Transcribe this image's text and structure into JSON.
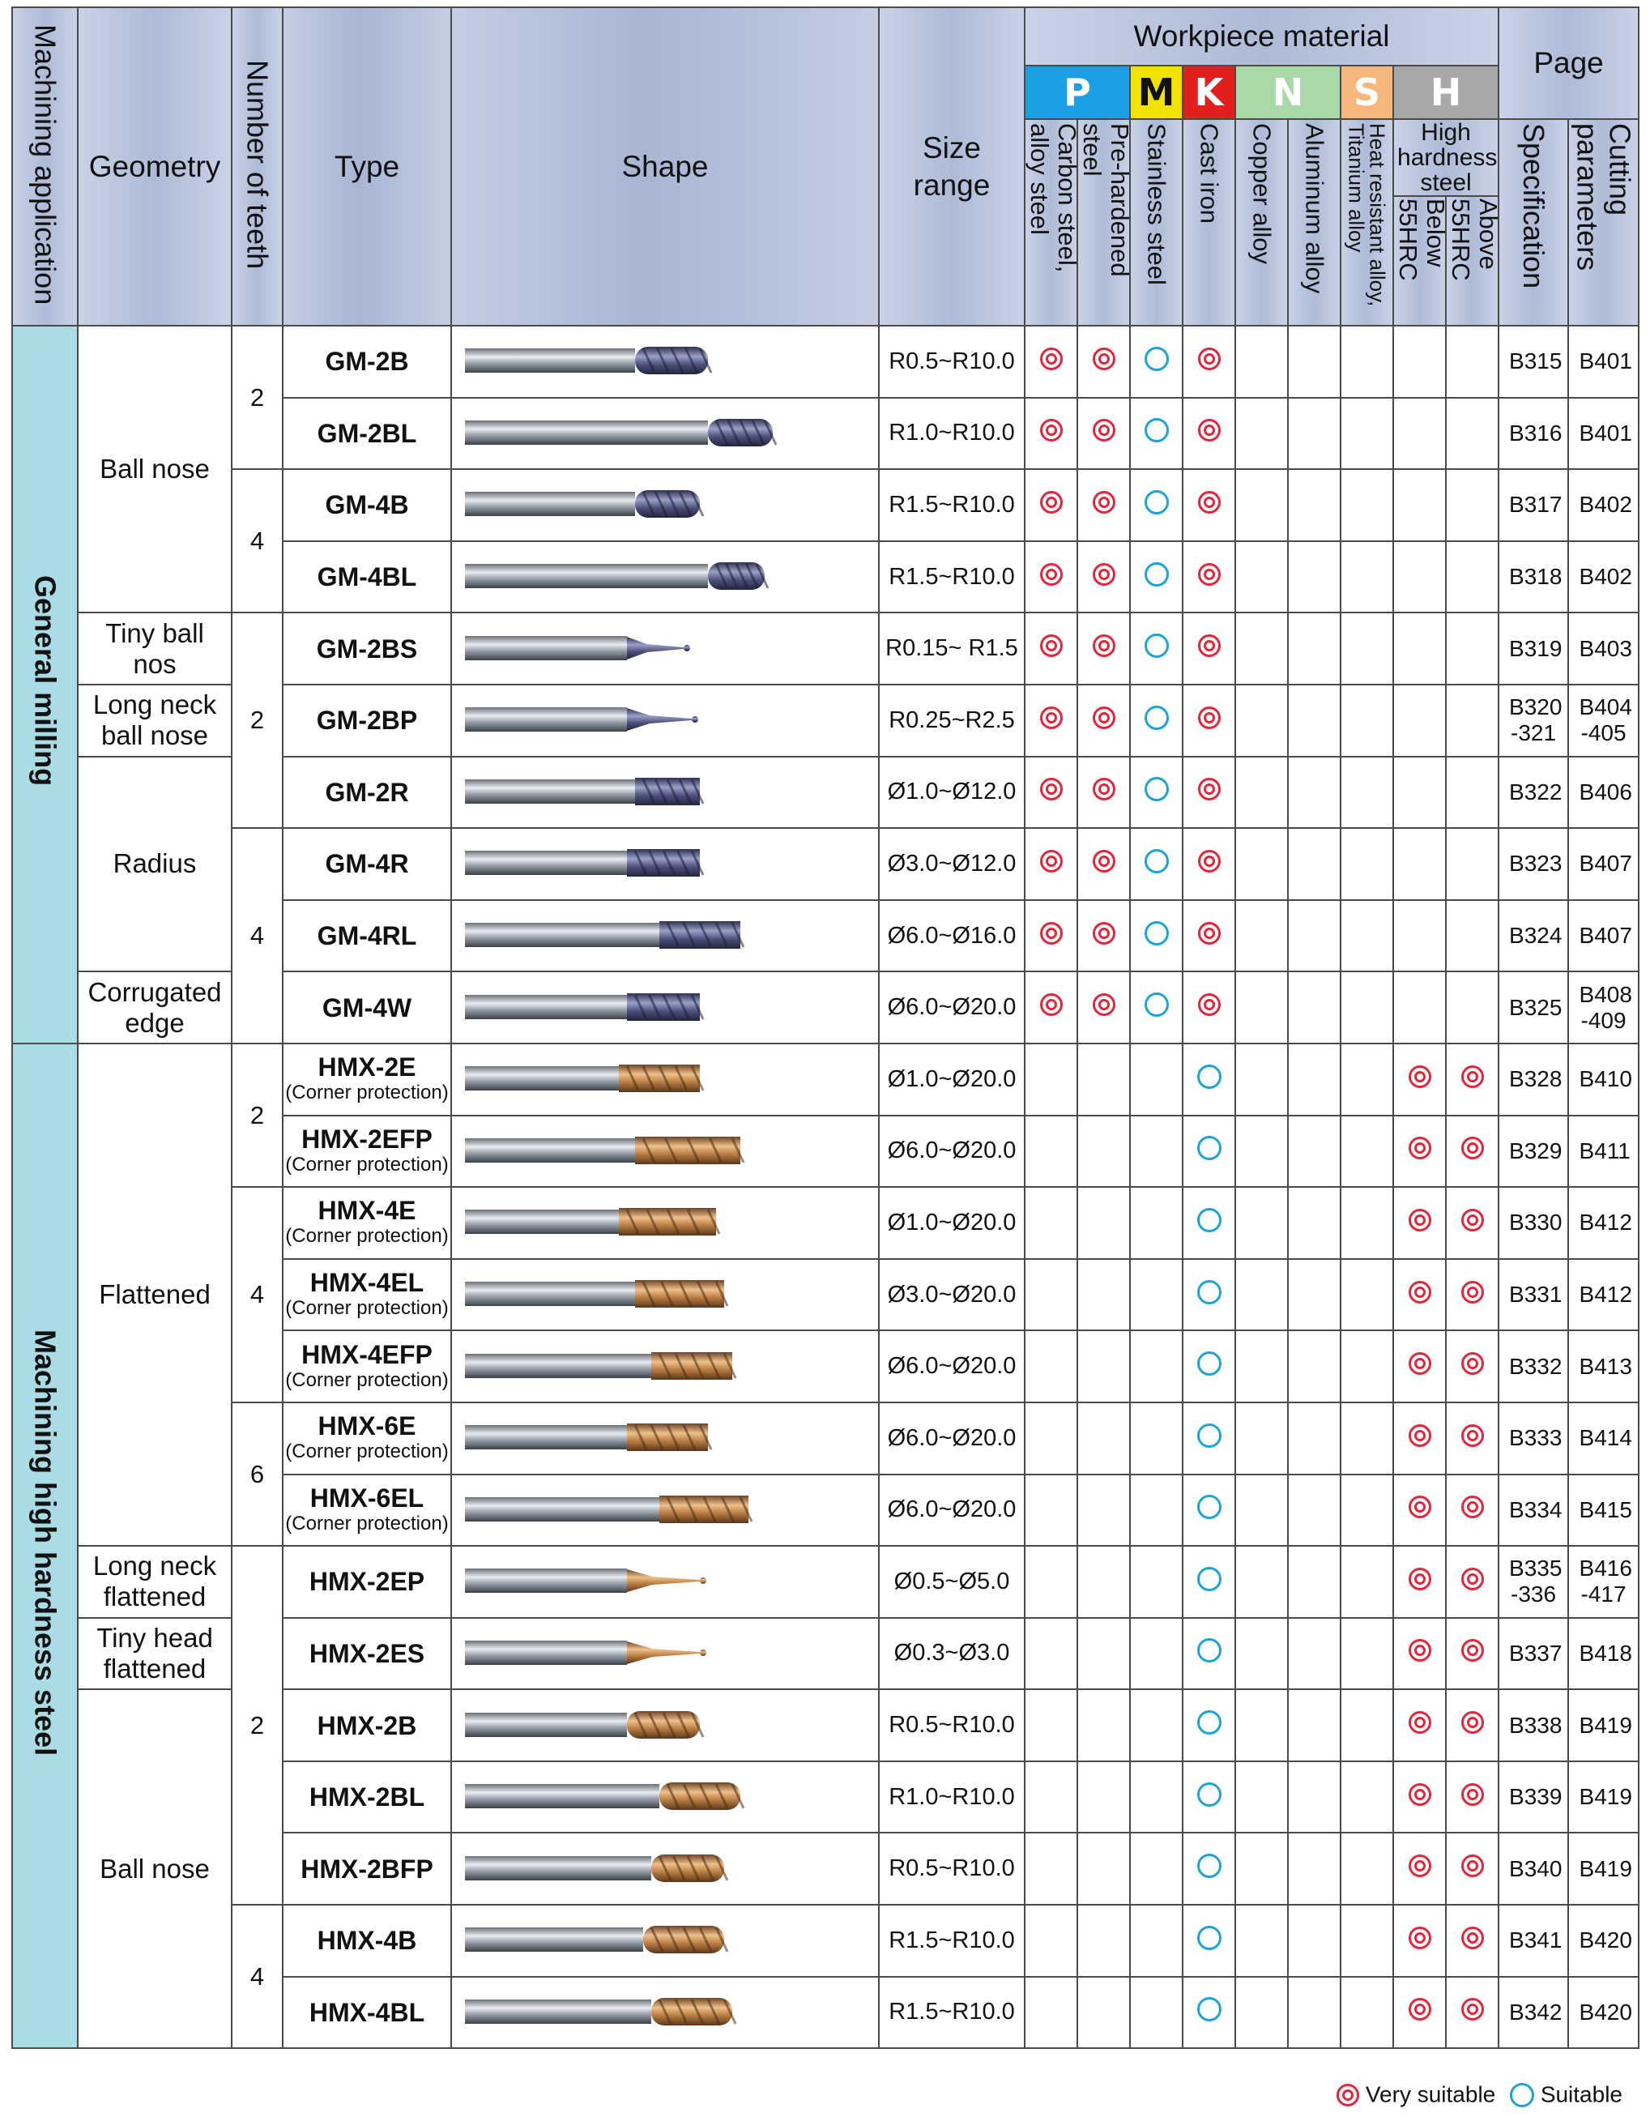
{
  "header": {
    "machining_application": "Machining application",
    "geometry": "Geometry",
    "number_of_teeth": "Number of teeth",
    "type": "Type",
    "shape": "Shape",
    "size_range": "Size range",
    "workpiece_material": "Workpiece material",
    "page": "Page",
    "material_codes": [
      {
        "code": "P",
        "color": "#1aa0e4"
      },
      {
        "code": "M",
        "color": "#f2e200"
      },
      {
        "code": "K",
        "color": "#e1201e"
      },
      {
        "code": "N",
        "color": "#a9d9a9"
      },
      {
        "code": "S",
        "color": "#f6b77a"
      },
      {
        "code": "H",
        "color": "#a8a8a8"
      }
    ],
    "materials": {
      "carbon": "Carbon steel, alloy steel",
      "prehardened": "Pre-hardened steel",
      "stainless": "Stainless steel",
      "cast_iron": "Cast iron",
      "copper": "Copper alloy",
      "aluminum": "Aluminum alloy",
      "heat_resistant": "Heat resistant alloy, Titanium alloy",
      "high_hardness": "High hardness steel",
      "below55": "Below 55HRC",
      "above55": "Above 55HRC"
    },
    "specification": "Specification",
    "cutting_parameters": "Cutting parameters"
  },
  "applications": {
    "general": "General milling",
    "high_hardness": "Machining high hardness steel"
  },
  "geometry_groups": {
    "ball_nose_1": "Ball nose",
    "tiny_ball": "Tiny ball nos",
    "long_neck_ball": "Long neck ball nose",
    "radius": "Radius",
    "corrugated": "Corrugated edge",
    "flattened": "Flattened",
    "long_neck_flat": "Long neck flattened",
    "tiny_head_flat": "Tiny head flattened",
    "ball_nose_2": "Ball nose"
  },
  "teeth_groups": [
    "2",
    "4",
    "2",
    "4",
    "2",
    "4",
    "6",
    "2",
    "4"
  ],
  "rows": [
    {
      "type": "GM-2B",
      "sub": "",
      "size": "R0.5~R10.0",
      "spec": "B315",
      "cut": "B401"
    },
    {
      "type": "GM-2BL",
      "sub": "",
      "size": "R1.0~R10.0",
      "spec": "B316",
      "cut": "B401"
    },
    {
      "type": "GM-4B",
      "sub": "",
      "size": "R1.5~R10.0",
      "spec": "B317",
      "cut": "B402"
    },
    {
      "type": "GM-4BL",
      "sub": "",
      "size": "R1.5~R10.0",
      "spec": "B318",
      "cut": "B402"
    },
    {
      "type": "GM-2BS",
      "sub": "",
      "size": "R0.15~ R1.5",
      "spec": "B319",
      "cut": "B403"
    },
    {
      "type": "GM-2BP",
      "sub": "",
      "size": "R0.25~R2.5",
      "spec": "B320 -321",
      "cut": "B404 -405"
    },
    {
      "type": "GM-2R",
      "sub": "",
      "size": "Ø1.0~Ø12.0",
      "spec": "B322",
      "cut": "B406"
    },
    {
      "type": "GM-4R",
      "sub": "",
      "size": "Ø3.0~Ø12.0",
      "spec": "B323",
      "cut": "B407"
    },
    {
      "type": "GM-4RL",
      "sub": "",
      "size": "Ø6.0~Ø16.0",
      "spec": "B324",
      "cut": "B407"
    },
    {
      "type": "GM-4W",
      "sub": "",
      "size": "Ø6.0~Ø20.0",
      "spec": "B325",
      "cut": "B408 -409"
    },
    {
      "type": "HMX-2E",
      "sub": "(Corner protection)",
      "size": "Ø1.0~Ø20.0",
      "spec": "B328",
      "cut": "B410"
    },
    {
      "type": "HMX-2EFP",
      "sub": "(Corner protection)",
      "size": "Ø6.0~Ø20.0",
      "spec": "B329",
      "cut": "B411"
    },
    {
      "type": "HMX-4E",
      "sub": "(Corner protection)",
      "size": "Ø1.0~Ø20.0",
      "spec": "B330",
      "cut": "B412"
    },
    {
      "type": "HMX-4EL",
      "sub": "(Corner protection)",
      "size": "Ø3.0~Ø20.0",
      "spec": "B331",
      "cut": "B412"
    },
    {
      "type": "HMX-4EFP",
      "sub": "(Corner protection)",
      "size": "Ø6.0~Ø20.0",
      "spec": "B332",
      "cut": "B413"
    },
    {
      "type": "HMX-6E",
      "sub": "(Corner protection)",
      "size": "Ø6.0~Ø20.0",
      "spec": "B333",
      "cut": "B414"
    },
    {
      "type": "HMX-6EL",
      "sub": "(Corner protection)",
      "size": "Ø6.0~Ø20.0",
      "spec": "B334",
      "cut": "B415"
    },
    {
      "type": "HMX-2EP",
      "sub": "",
      "size": "Ø0.5~Ø5.0",
      "spec": "B335 -336",
      "cut": "B416 -417"
    },
    {
      "type": "HMX-2ES",
      "sub": "",
      "size": "Ø0.3~Ø3.0",
      "spec": "B337",
      "cut": "B418"
    },
    {
      "type": "HMX-2B",
      "sub": "",
      "size": "R0.5~R10.0",
      "spec": "B338",
      "cut": "B419"
    },
    {
      "type": "HMX-2BL",
      "sub": "",
      "size": "R1.0~R10.0",
      "spec": "B339",
      "cut": "B419"
    },
    {
      "type": "HMX-2BFP",
      "sub": "",
      "size": "R0.5~R10.0",
      "spec": "B340",
      "cut": "B419"
    },
    {
      "type": "HMX-4B",
      "sub": "",
      "size": "R1.5~R10.0",
      "spec": "B341",
      "cut": "B420"
    },
    {
      "type": "HMX-4BL",
      "sub": "",
      "size": "R1.5~R10.0",
      "spec": "B342",
      "cut": "B420"
    }
  ],
  "legend": {
    "very_suitable": "Very suitable",
    "suitable": "Suitable"
  },
  "colors": {
    "header_bg": "#b4c0da",
    "application_bg": "#a9dce4",
    "very_suitable_mark": "#e3263b",
    "suitable_mark": "#1ea3d6",
    "gm_coating": "#5b5f88",
    "hmx_coating": "#c58a4f"
  }
}
